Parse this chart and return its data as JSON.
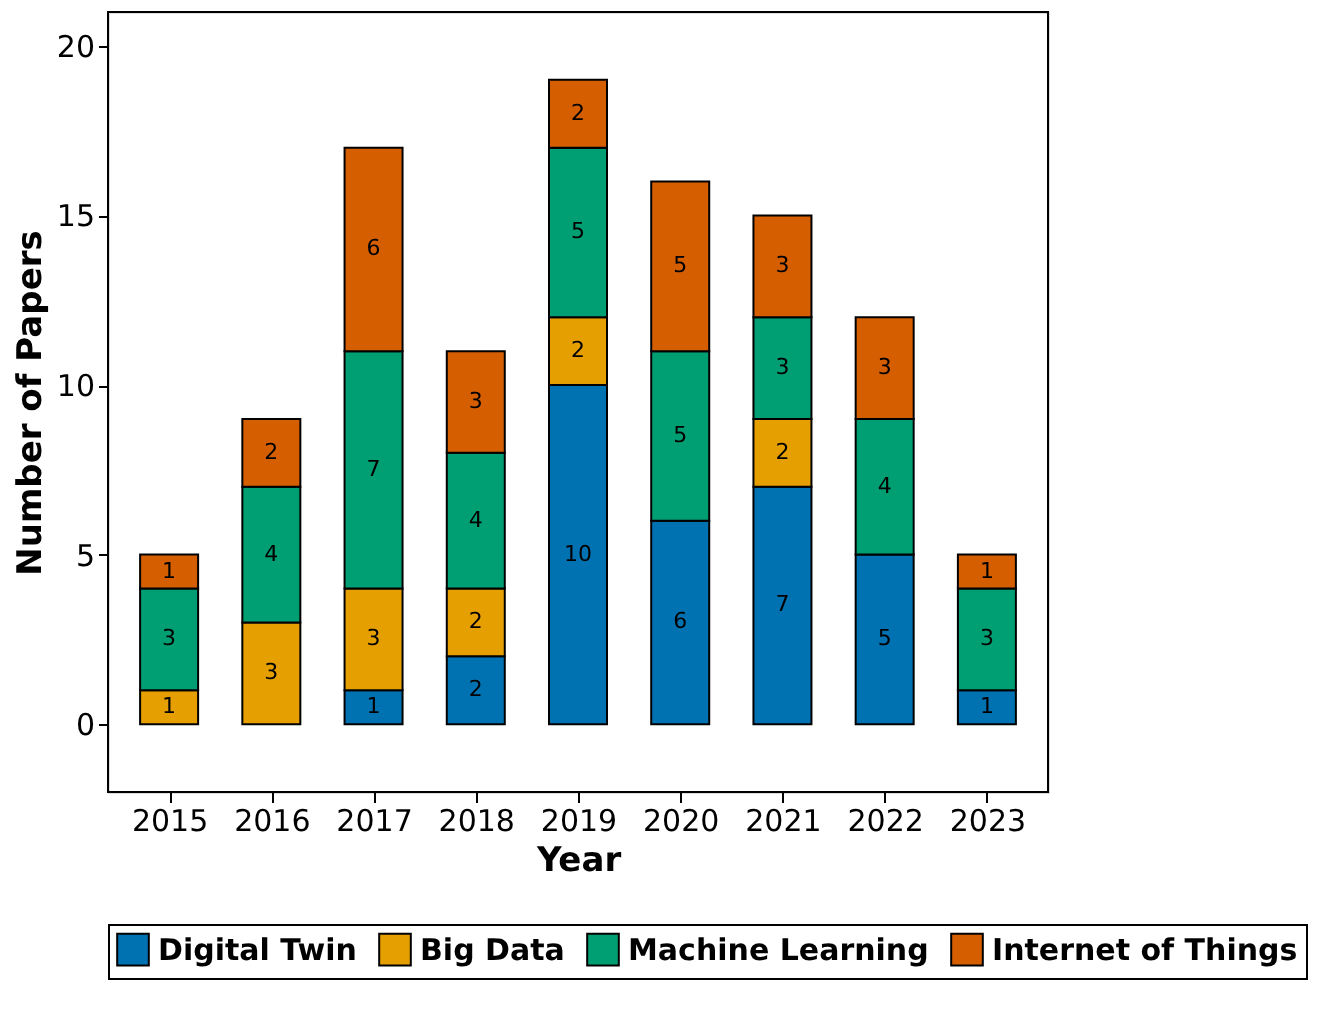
{
  "chart_data": {
    "type": "bar",
    "stacked": true,
    "xlabel": "Year",
    "ylabel": "Number of Papers",
    "categories": [
      "2015",
      "2016",
      "2017",
      "2018",
      "2019",
      "2020",
      "2021",
      "2022",
      "2023"
    ],
    "series": [
      {
        "name": "Digital Twin",
        "color": "#0072b2",
        "values": [
          0,
          0,
          1,
          2,
          10,
          6,
          7,
          5,
          1
        ],
        "value_labels": [
          null,
          null,
          "1",
          "2",
          "10",
          "6",
          "7",
          "5",
          "1"
        ]
      },
      {
        "name": "Big Data",
        "color": "#e69f00",
        "values": [
          1,
          3,
          3,
          2,
          2,
          0,
          2,
          0,
          0
        ],
        "value_labels": [
          "1",
          "3",
          "3",
          "2",
          "2",
          null,
          "2",
          null,
          null
        ]
      },
      {
        "name": "Machine Learning",
        "color": "#009e73",
        "values": [
          3,
          4,
          7,
          4,
          5,
          5,
          3,
          4,
          3
        ],
        "value_labels": [
          "3",
          "4",
          "7",
          "4",
          "5",
          "5",
          "3",
          "4",
          "3"
        ]
      },
      {
        "name": "Internet of Things",
        "color": "#d55e00",
        "values": [
          1,
          2,
          6,
          3,
          2,
          5,
          3,
          3,
          1
        ],
        "value_labels": [
          "1",
          "2",
          "6",
          "3",
          "2",
          "5",
          "3",
          "3",
          "1"
        ]
      }
    ],
    "ylim": [
      -2,
      21
    ],
    "yticks": [
      0,
      5,
      10,
      15,
      20
    ],
    "grid": false,
    "legend": "bottom"
  }
}
